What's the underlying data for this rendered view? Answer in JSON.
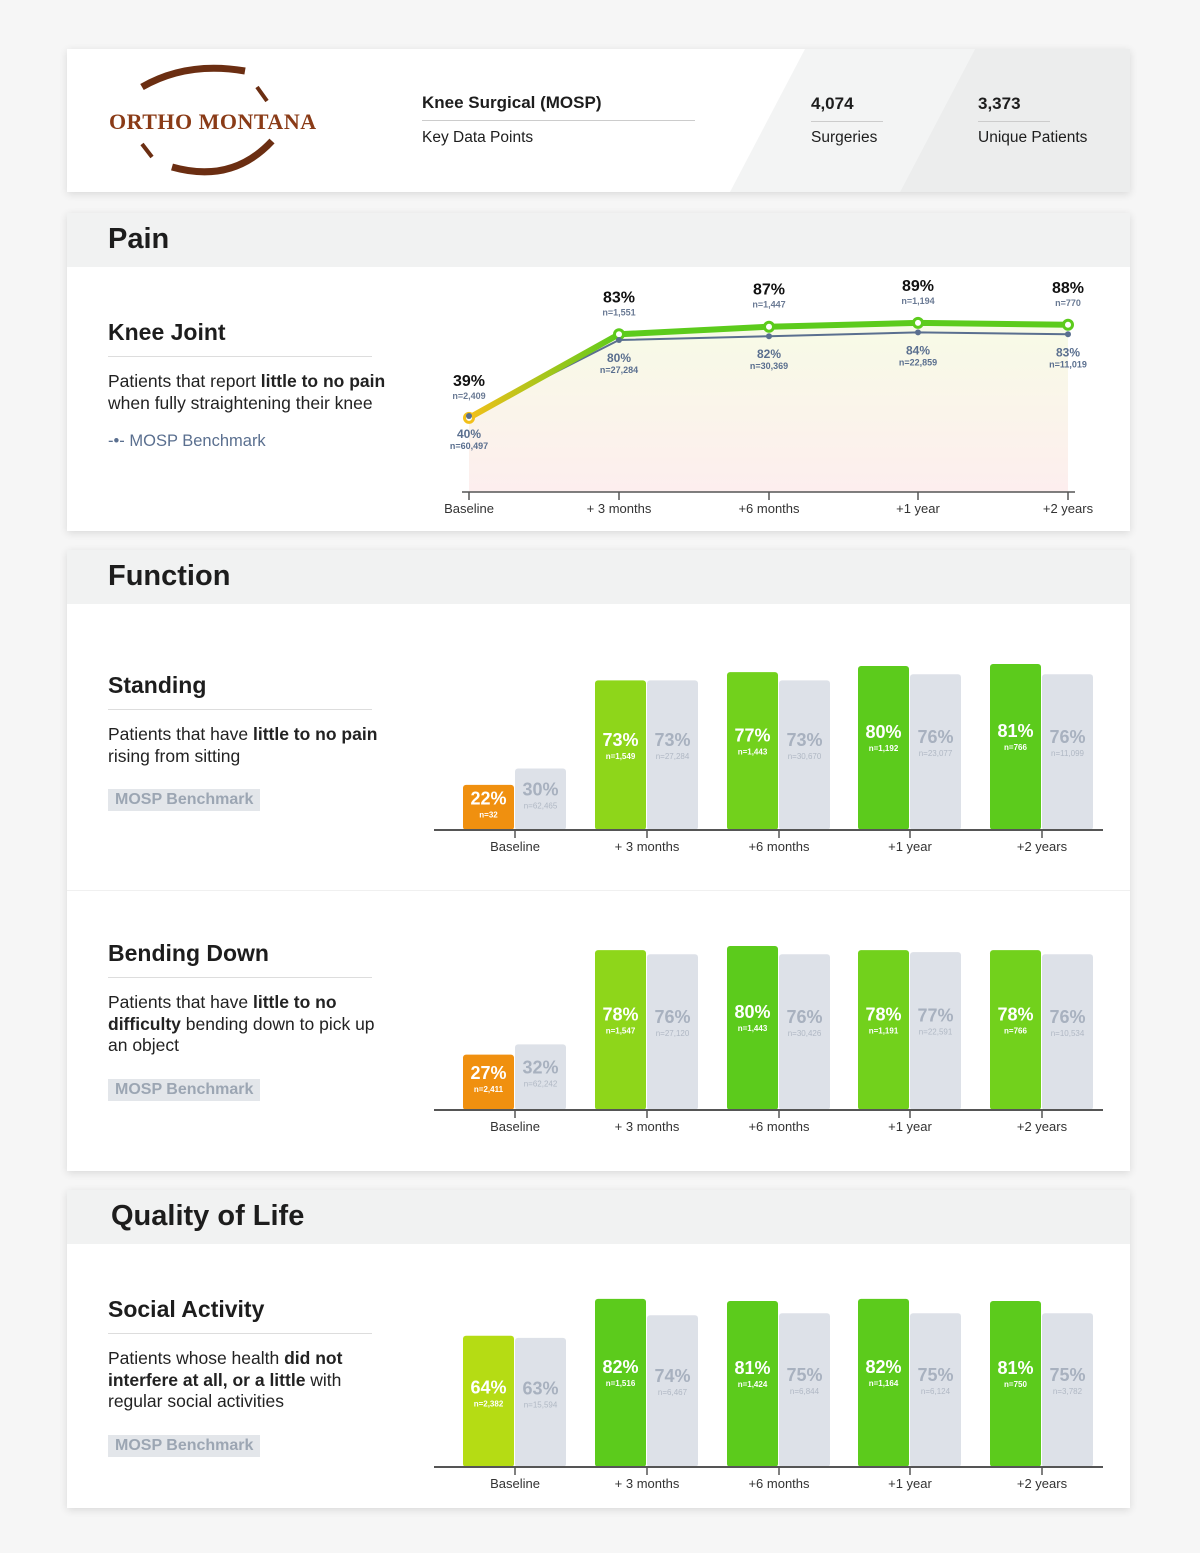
{
  "header": {
    "logo": "ORTHO MONTANA",
    "title": "Knee Surgical (MOSP)",
    "subtitle": "Key Data Points",
    "stats": [
      {
        "value": "4,074",
        "label": "Surgeries"
      },
      {
        "value": "3,373",
        "label": "Unique Patients"
      }
    ]
  },
  "sections": [
    "Pain",
    "Function",
    "Quality of Life"
  ],
  "chart_data": [
    {
      "type": "line",
      "title": "Knee Joint",
      "description": [
        "Patients that report ",
        "little to no pain",
        " when fully straightening their knee"
      ],
      "categories": [
        "Baseline",
        "+ 3 months",
        "+6 months",
        "+1 year",
        "+2 years"
      ],
      "series": [
        {
          "color": "#5ccb1c",
          "values": [
            39,
            83,
            87,
            89,
            88
          ],
          "value_labels": [
            "39%",
            "83%",
            "87%",
            "89%",
            "88%"
          ],
          "n": [
            "n=2,409",
            "n=1,551",
            "n=1,447",
            "n=1,194",
            "n=770"
          ]
        },
        {
          "name": "MOSP Benchmark",
          "color": "#5a6f8f",
          "values": [
            40,
            80,
            82,
            84,
            83
          ],
          "value_labels": [
            "40%",
            "80%",
            "82%",
            "84%",
            "83%"
          ],
          "n": [
            "n=60,497",
            "n=27,284",
            "n=30,369",
            "n=22,859",
            "n=11,019"
          ]
        }
      ],
      "ylim": [
        0,
        100
      ]
    },
    {
      "type": "bar",
      "title": "Standing",
      "description": [
        "Patients that have ",
        "little to no pain",
        " rising from sitting"
      ],
      "categories": [
        "Baseline",
        "+ 3 months",
        "+6 months",
        "+1 year",
        "+2 years"
      ],
      "series": [
        {
          "colors": [
            "#f0900f",
            "#8ed61a",
            "#72d11c",
            "#5ccb1c",
            "#5ccb1c"
          ],
          "values": [
            22,
            73,
            77,
            80,
            81
          ],
          "value_labels": [
            "22%",
            "73%",
            "77%",
            "80%",
            "81%"
          ],
          "n": [
            "n=32",
            "n=1,549",
            "n=1,443",
            "n=1,192",
            "n=766"
          ]
        },
        {
          "name": "MOSP Benchmark",
          "color": "#dde1e8",
          "values": [
            30,
            73,
            73,
            76,
            76
          ],
          "value_labels": [
            "30%",
            "73%",
            "73%",
            "76%",
            "76%"
          ],
          "n": [
            "n=62,465",
            "n=27,284",
            "n=30,670",
            "n=23,077",
            "n=11,099"
          ]
        }
      ],
      "ylim": [
        0,
        100
      ]
    },
    {
      "type": "bar",
      "title": "Bending Down",
      "description": [
        "Patients that have ",
        "little to no difficulty",
        " bending down to pick up an object"
      ],
      "categories": [
        "Baseline",
        "+ 3 months",
        "+6 months",
        "+1 year",
        "+2 years"
      ],
      "series": [
        {
          "colors": [
            "#f0900f",
            "#8ed61a",
            "#5ccb1c",
            "#72d11c",
            "#72d11c"
          ],
          "values": [
            27,
            78,
            80,
            78,
            78
          ],
          "value_labels": [
            "27%",
            "78%",
            "80%",
            "78%",
            "78%"
          ],
          "n": [
            "n=2,411",
            "n=1,547",
            "n=1,443",
            "n=1,191",
            "n=766"
          ]
        },
        {
          "name": "MOSP Benchmark",
          "color": "#dde1e8",
          "values": [
            32,
            76,
            76,
            77,
            76
          ],
          "value_labels": [
            "32%",
            "76%",
            "76%",
            "77%",
            "76%"
          ],
          "n": [
            "n=62,242",
            "n=27,120",
            "n=30,426",
            "n=22,591",
            "n=10,534"
          ]
        }
      ],
      "ylim": [
        0,
        100
      ]
    },
    {
      "type": "bar",
      "title": "Social Activity",
      "description": [
        "Patients whose health ",
        "did not interfere at all, or a little",
        " with regular social activities"
      ],
      "categories": [
        "Baseline",
        "+ 3 months",
        "+6 months",
        "+1 year",
        "+2 years"
      ],
      "series": [
        {
          "colors": [
            "#b5dc14",
            "#5ccb1c",
            "#5ccb1c",
            "#5ccb1c",
            "#5ccb1c"
          ],
          "values": [
            64,
            82,
            81,
            82,
            81
          ],
          "value_labels": [
            "64%",
            "82%",
            "81%",
            "82%",
            "81%"
          ],
          "n": [
            "n=2,382",
            "n=1,516",
            "n=1,424",
            "n=1,164",
            "n=750"
          ]
        },
        {
          "name": "MOSP Benchmark",
          "color": "#dde1e8",
          "values": [
            63,
            74,
            75,
            75,
            75
          ],
          "value_labels": [
            "63%",
            "74%",
            "75%",
            "75%",
            "75%"
          ],
          "n": [
            "n=15,594",
            "n=6,467",
            "n=6,844",
            "n=6,124",
            "n=3,782"
          ]
        }
      ],
      "ylim": [
        0,
        100
      ]
    }
  ]
}
